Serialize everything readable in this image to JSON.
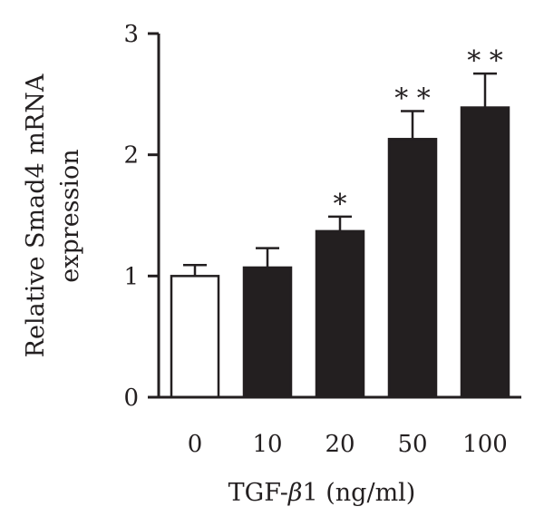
{
  "chart_data": {
    "type": "bar",
    "categories": [
      "0",
      "10",
      "20",
      "50",
      "100"
    ],
    "values": [
      1.0,
      1.07,
      1.37,
      2.13,
      2.39
    ],
    "errors": [
      0.09,
      0.16,
      0.12,
      0.23,
      0.28
    ],
    "significance": [
      "",
      "",
      "*",
      "* *",
      "* *"
    ],
    "bar_fill": [
      "#ffffff",
      "#231f20",
      "#231f20",
      "#231f20",
      "#231f20"
    ],
    "xlabel_prefix": "TGF-",
    "xlabel_beta": "β",
    "xlabel_suffix": "1 (ng/ml)",
    "ylabel_line1": "Relative Smad4 mRNA",
    "ylabel_line2": "expression",
    "ylim": [
      0,
      3
    ],
    "yticks": [
      "0",
      "1",
      "2",
      "3"
    ],
    "grid": false,
    "colors": {
      "ink": "#231f20",
      "background": "#ffffff"
    }
  }
}
